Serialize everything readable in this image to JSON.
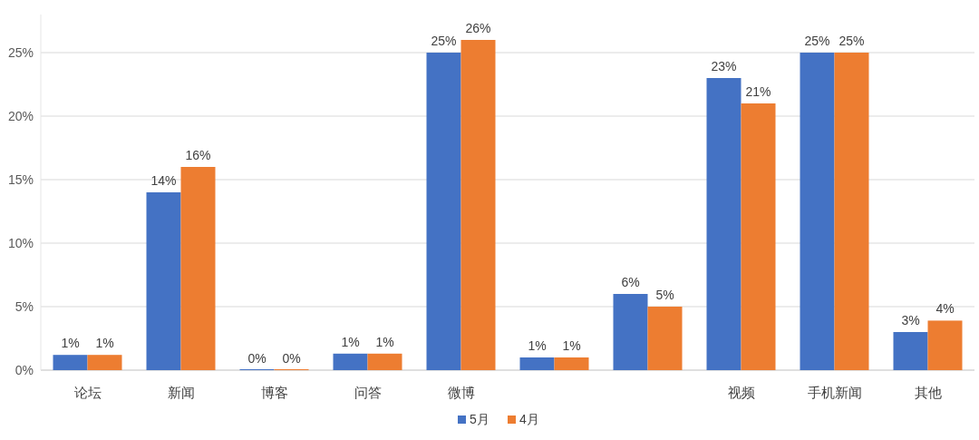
{
  "chart_data": {
    "type": "bar",
    "categories": [
      "论坛",
      "新闻",
      "博客",
      "问答",
      "微博",
      null,
      null,
      "视频",
      "手机新闻",
      "其他"
    ],
    "series": [
      {
        "name": "5月",
        "color": "#4472c4",
        "values": [
          1.2,
          14,
          0,
          1.3,
          25,
          1.0,
          6,
          23,
          25,
          3
        ],
        "value_labels": [
          "1%",
          "14%",
          "0%",
          "1%",
          "25%",
          "1%",
          "6%",
          "23%",
          "25%",
          "3%"
        ]
      },
      {
        "name": "4月",
        "color": "#ed7d31",
        "values": [
          1.2,
          16,
          0,
          1.3,
          26,
          1.0,
          5,
          21,
          25,
          3.9
        ],
        "value_labels": [
          "1%",
          "16%",
          "0%",
          "1%",
          "26%",
          "1%",
          "5%",
          "21%",
          "25%",
          "4%"
        ]
      }
    ],
    "ylim": [
      0,
      28
    ],
    "yticks": [
      {
        "value": 0,
        "label": "0%"
      },
      {
        "value": 5,
        "label": "5%"
      },
      {
        "value": 10,
        "label": "10%"
      },
      {
        "value": 15,
        "label": "15%"
      },
      {
        "value": 20,
        "label": "20%"
      },
      {
        "value": 25,
        "label": "25%"
      }
    ],
    "grid": "y",
    "legend": "bottom"
  }
}
